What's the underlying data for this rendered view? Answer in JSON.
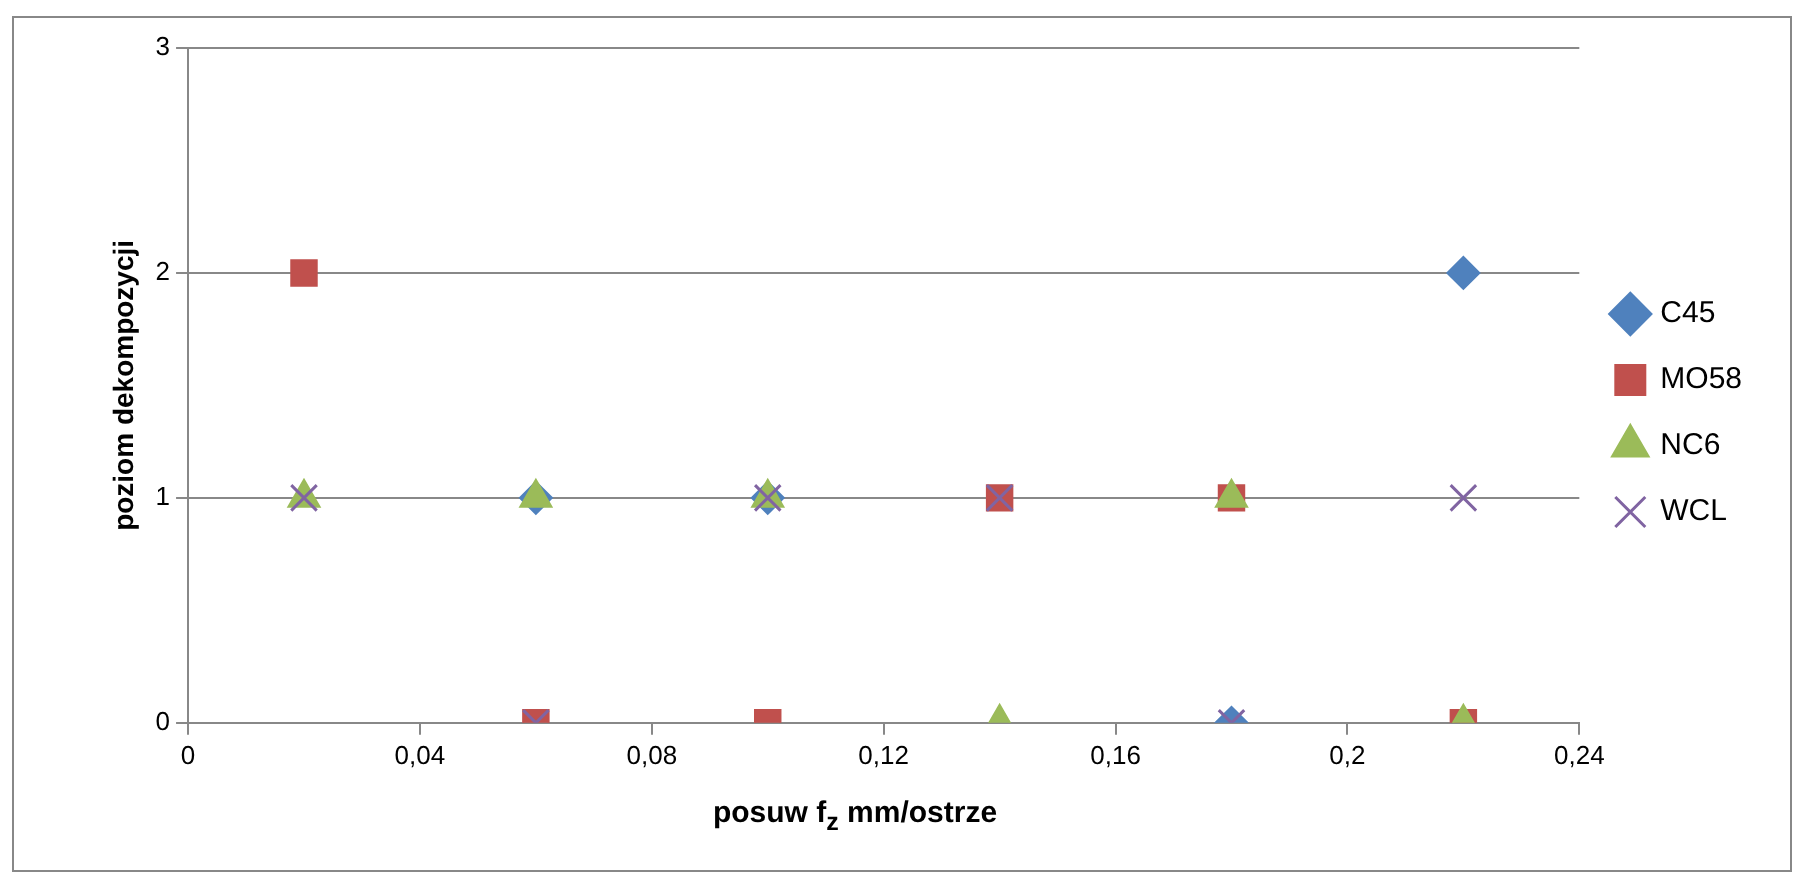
{
  "chart_data": {
    "type": "scatter",
    "xlabel": "posuw f$_{z}$ mm/ostrze",
    "ylabel": "poziom dekompozycji",
    "x": [
      0.02,
      0.06,
      0.1,
      0.14,
      0.18,
      0.22
    ],
    "series": [
      {
        "name": "C45",
        "color": "#4f81bd",
        "marker": "diamond",
        "values": [
          null,
          1,
          1,
          null,
          0,
          2
        ]
      },
      {
        "name": "MO58",
        "color": "#c0504d",
        "marker": "square",
        "values": [
          2,
          0,
          0,
          1,
          1,
          0
        ]
      },
      {
        "name": "NC6",
        "color": "#9bbb59",
        "marker": "triangle",
        "values": [
          1,
          1,
          1,
          0,
          1,
          0
        ]
      },
      {
        "name": "WCL",
        "color": "#8064a2",
        "marker": "cross",
        "values": [
          1,
          0,
          1,
          1,
          0,
          1
        ]
      }
    ],
    "xlim": [
      0,
      0.24
    ],
    "xticks": [
      0,
      {
        "value": 0.04,
        "label": "0,04"
      },
      {
        "value": 0.08,
        "label": "0,08"
      },
      {
        "value": 0.12,
        "label": "0,12"
      },
      {
        "value": 0.16,
        "label": "0,16"
      },
      {
        "value": 0.2,
        "label": "0,2"
      },
      {
        "value": 0.24,
        "label": "0,24"
      }
    ],
    "ylim": [
      0,
      3
    ],
    "yticks": [
      0,
      1,
      2,
      3
    ],
    "grid": "y",
    "legend": "right"
  }
}
